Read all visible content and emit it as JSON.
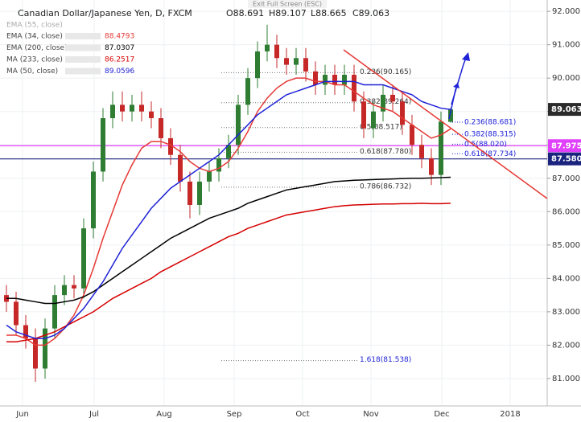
{
  "chart_data": {
    "type": "candlestick",
    "title": "Canadian Dollar/Japanese Yen, D, FXCM",
    "ohlc_texts": [
      "O88.691",
      "H89.107",
      "L88.665",
      "C89.063"
    ],
    "exit_text": "Exit Full Screen (ESC)",
    "hidden_indicator": "EMA (55, close)",
    "up_color": "#2e7d32",
    "down_color": "#c62828",
    "open": [
      83.5,
      83.3,
      82.6,
      82.2,
      81.3,
      82.5,
      83.5,
      83.8,
      83.7,
      85.5,
      87.2,
      88.8,
      89.2,
      89.0,
      89.2,
      89.0,
      88.8,
      88.2,
      87.7,
      86.9,
      86.2,
      86.9,
      87.2,
      87.6,
      88.0,
      89.2,
      90.0,
      90.8,
      91.0,
      90.6,
      90.4,
      90.6,
      90.2,
      89.8,
      90.1,
      89.8,
      90.1,
      89.3,
      88.5,
      89.0,
      89.5,
      89.3,
      88.6,
      88.0,
      87.6,
      87.1,
      88.69
    ],
    "high": [
      83.8,
      83.6,
      82.9,
      82.5,
      82.8,
      83.8,
      84.1,
      84.1,
      85.8,
      87.5,
      89.1,
      89.6,
      89.6,
      89.5,
      89.6,
      89.3,
      89.1,
      88.5,
      88.0,
      87.2,
      87.2,
      87.5,
      87.9,
      88.3,
      89.5,
      90.3,
      91.1,
      91.6,
      91.3,
      90.9,
      90.9,
      90.9,
      90.5,
      90.4,
      90.4,
      90.4,
      90.4,
      89.6,
      89.3,
      89.8,
      89.8,
      89.6,
      88.9,
      88.3,
      87.9,
      89.0,
      89.107
    ],
    "low": [
      83.0,
      82.3,
      81.9,
      80.9,
      81.0,
      82.2,
      83.2,
      83.4,
      83.4,
      85.2,
      86.9,
      88.5,
      88.7,
      88.7,
      88.7,
      88.5,
      87.9,
      87.4,
      86.6,
      85.8,
      85.9,
      86.6,
      86.9,
      87.3,
      87.7,
      88.9,
      89.7,
      90.5,
      90.3,
      90.1,
      90.1,
      89.9,
      89.5,
      89.5,
      89.5,
      89.5,
      89.0,
      88.2,
      88.2,
      88.7,
      89.0,
      88.3,
      87.7,
      87.3,
      86.8,
      86.8,
      88.665
    ],
    "close": [
      83.3,
      82.6,
      82.2,
      81.3,
      82.5,
      83.5,
      83.8,
      83.7,
      85.5,
      87.2,
      88.8,
      89.2,
      89.0,
      89.2,
      89.0,
      88.8,
      88.2,
      87.7,
      86.9,
      86.2,
      86.9,
      87.2,
      87.6,
      88.0,
      89.2,
      90.0,
      90.8,
      91.0,
      90.6,
      90.4,
      90.6,
      90.2,
      89.8,
      90.1,
      89.8,
      90.1,
      89.3,
      88.5,
      89.0,
      89.5,
      89.3,
      88.6,
      88.0,
      87.6,
      87.1,
      88.7,
      89.063
    ],
    "series": [
      {
        "name": "EMA (34, close)",
        "color": "#e53935",
        "last": "88.4793",
        "values": [
          82.3,
          82.3,
          82.2,
          82.0,
          82.0,
          82.2,
          82.5,
          82.9,
          83.5,
          84.3,
          85.2,
          86.0,
          86.8,
          87.4,
          87.9,
          88.1,
          88.1,
          88.0,
          87.8,
          87.5,
          87.3,
          87.2,
          87.3,
          87.5,
          87.9,
          88.4,
          89.0,
          89.4,
          89.7,
          89.9,
          90.0,
          90.0,
          89.9,
          89.9,
          89.8,
          89.8,
          89.6,
          89.4,
          89.2,
          89.1,
          89.0,
          88.8,
          88.6,
          88.4,
          88.2,
          88.3,
          88.48
        ]
      },
      {
        "name": "EMA (200, close)",
        "color": "#000000",
        "last": "87.0307",
        "values": [
          83.4,
          83.4,
          83.35,
          83.3,
          83.25,
          83.25,
          83.3,
          83.35,
          83.45,
          83.6,
          83.8,
          84.0,
          84.2,
          84.4,
          84.6,
          84.8,
          85.0,
          85.2,
          85.35,
          85.5,
          85.65,
          85.8,
          85.9,
          86.0,
          86.1,
          86.25,
          86.35,
          86.45,
          86.55,
          86.65,
          86.7,
          86.75,
          86.8,
          86.85,
          86.9,
          86.92,
          86.94,
          86.95,
          86.96,
          86.97,
          86.98,
          86.99,
          87.0,
          87.0,
          87.01,
          87.02,
          87.03
        ]
      },
      {
        "name": "MA (233, close)",
        "color": "#d50000",
        "last": "86.2517",
        "values": [
          82.1,
          82.1,
          82.15,
          82.2,
          82.3,
          82.4,
          82.55,
          82.7,
          82.85,
          83.0,
          83.2,
          83.4,
          83.55,
          83.7,
          83.85,
          84.0,
          84.2,
          84.35,
          84.5,
          84.65,
          84.8,
          84.95,
          85.1,
          85.25,
          85.35,
          85.5,
          85.6,
          85.7,
          85.8,
          85.9,
          85.95,
          86.0,
          86.05,
          86.1,
          86.15,
          86.18,
          86.2,
          86.21,
          86.22,
          86.23,
          86.23,
          86.24,
          86.24,
          86.25,
          86.24,
          86.24,
          86.25
        ]
      },
      {
        "name": "MA (50, close)",
        "color": "#1e22d6",
        "last": "89.0596",
        "values": [
          82.6,
          82.4,
          82.3,
          82.2,
          82.2,
          82.3,
          82.5,
          82.8,
          83.1,
          83.5,
          83.9,
          84.4,
          84.9,
          85.3,
          85.7,
          86.1,
          86.4,
          86.7,
          86.9,
          87.1,
          87.3,
          87.5,
          87.7,
          88.0,
          88.3,
          88.6,
          88.9,
          89.1,
          89.3,
          89.5,
          89.6,
          89.7,
          89.8,
          89.9,
          89.9,
          89.9,
          89.9,
          89.8,
          89.8,
          89.8,
          89.7,
          89.6,
          89.5,
          89.3,
          89.2,
          89.1,
          89.06
        ]
      }
    ],
    "ylim": [
      80.18,
      92.34
    ],
    "yticks": [
      {
        "value": 81,
        "label": "81.000"
      },
      {
        "value": 82,
        "label": "82.000"
      },
      {
        "value": 83,
        "label": "83.000"
      },
      {
        "value": 84,
        "label": "84.000"
      },
      {
        "value": 85,
        "label": "85.000"
      },
      {
        "value": 86,
        "label": "86.000"
      },
      {
        "value": 87,
        "label": "87.000"
      },
      {
        "value": 88,
        "label": "88.000"
      },
      {
        "value": 89,
        "label": "89.000"
      },
      {
        "value": 90,
        "label": "90.000"
      },
      {
        "value": 91,
        "label": "91.000"
      },
      {
        "value": 92,
        "label": "92.000"
      }
    ],
    "x_labels": [
      "Jun",
      "Jul",
      "Aug",
      "Sep",
      "Oct",
      "Nov",
      "Dec",
      "2018"
    ],
    "price_tags": [
      {
        "value": 89.063,
        "label": "89.063",
        "color": "#2b2b2b"
      },
      {
        "value": 87.975,
        "label": "87.975",
        "color": "#e040fb"
      },
      {
        "value": 87.58,
        "label": "87.580",
        "color": "#1a237e"
      }
    ],
    "hlines": [
      {
        "value": 87.975,
        "color": "#e040fb"
      },
      {
        "value": 87.58,
        "color": "#1a237e"
      }
    ],
    "fib_left": [
      {
        "value": 90.165,
        "label": "0.236(90.165)"
      },
      {
        "value": 89.264,
        "label": "0.382(89.264)"
      },
      {
        "value": 88.517,
        "label": "0.5(88.517)"
      },
      {
        "value": 87.78,
        "label": "0.618(87.780)"
      },
      {
        "value": 86.732,
        "label": "0.786(86.732)"
      },
      {
        "value": 81.538,
        "label": "1.618(81.538)"
      }
    ],
    "fib_right": [
      {
        "value": 88.681,
        "label": "0.236(88.681)"
      },
      {
        "value": 88.315,
        "label": "0.382(88.315)"
      },
      {
        "value": 88.02,
        "label": "0.5(88.020)"
      },
      {
        "value": 87.734,
        "label": "0.618(87.734)"
      }
    ]
  }
}
